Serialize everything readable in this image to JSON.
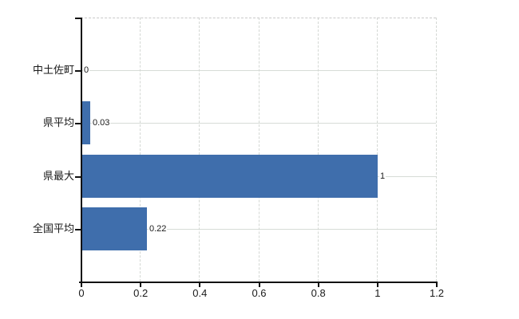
{
  "chart_data": {
    "type": "bar",
    "orientation": "horizontal",
    "title": "",
    "xlabel": "",
    "ylabel": "",
    "categories": [
      "中土佐町",
      "県平均",
      "県最大",
      "全国平均"
    ],
    "values": [
      0,
      0.03,
      1,
      0.22
    ],
    "value_labels": [
      "0",
      "0.03",
      "1",
      "0.22"
    ],
    "xlim": [
      0,
      1.2
    ],
    "x_ticks": [
      0,
      0.2,
      0.4,
      0.6,
      0.8,
      1,
      1.2
    ],
    "x_tick_labels": [
      "0",
      "0.2",
      "0.4",
      "0.6",
      "0.8",
      "1",
      "1.2"
    ],
    "grid": true,
    "legend": false,
    "series_name": "",
    "bar_color": "#3f6eac"
  },
  "colors": {
    "bar": "#3f6eac",
    "grid_vertical": "#d4d8d4",
    "grid_horizontal": "#d7dcd7",
    "axis": "#111111",
    "text": "#1a1a1a",
    "background": "#ffffff"
  }
}
